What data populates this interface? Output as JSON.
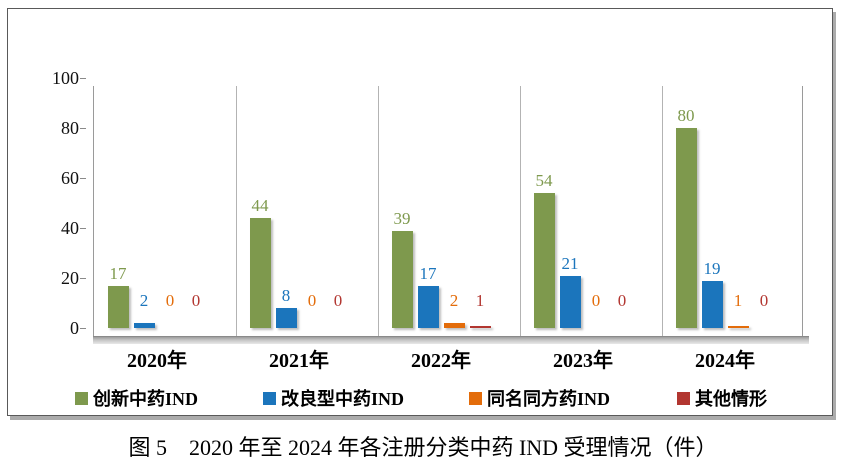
{
  "caption": "图 5　2020 年至 2024 年各注册分类中药 IND 受理情况（件）",
  "chart_data": {
    "type": "bar",
    "title": "图 5　2020 年至 2024 年各注册分类中药 IND 受理情况（件）",
    "categories": [
      "2020年",
      "2021年",
      "2022年",
      "2023年",
      "2024年"
    ],
    "series": [
      {
        "name": "创新中药IND",
        "color": "#7E994D",
        "values": [
          17,
          44,
          39,
          54,
          80
        ]
      },
      {
        "name": "改良型中药IND",
        "color": "#1B75BC",
        "values": [
          2,
          8,
          17,
          21,
          19
        ]
      },
      {
        "name": "同名同方药IND",
        "color": "#E36C0A",
        "values": [
          0,
          0,
          2,
          0,
          1
        ]
      },
      {
        "name": "其他情形",
        "color": "#B23630",
        "values": [
          0,
          0,
          1,
          0,
          0
        ]
      }
    ],
    "xlabel": "",
    "ylabel": "",
    "ylim": [
      0,
      100
    ],
    "yticks": [
      0,
      20,
      40,
      60,
      80,
      100
    ],
    "grid": "vertical-category-separators",
    "legend_position": "bottom",
    "value_labels": "above-bars, colored per series",
    "axis_color": "#9a9a9a"
  }
}
